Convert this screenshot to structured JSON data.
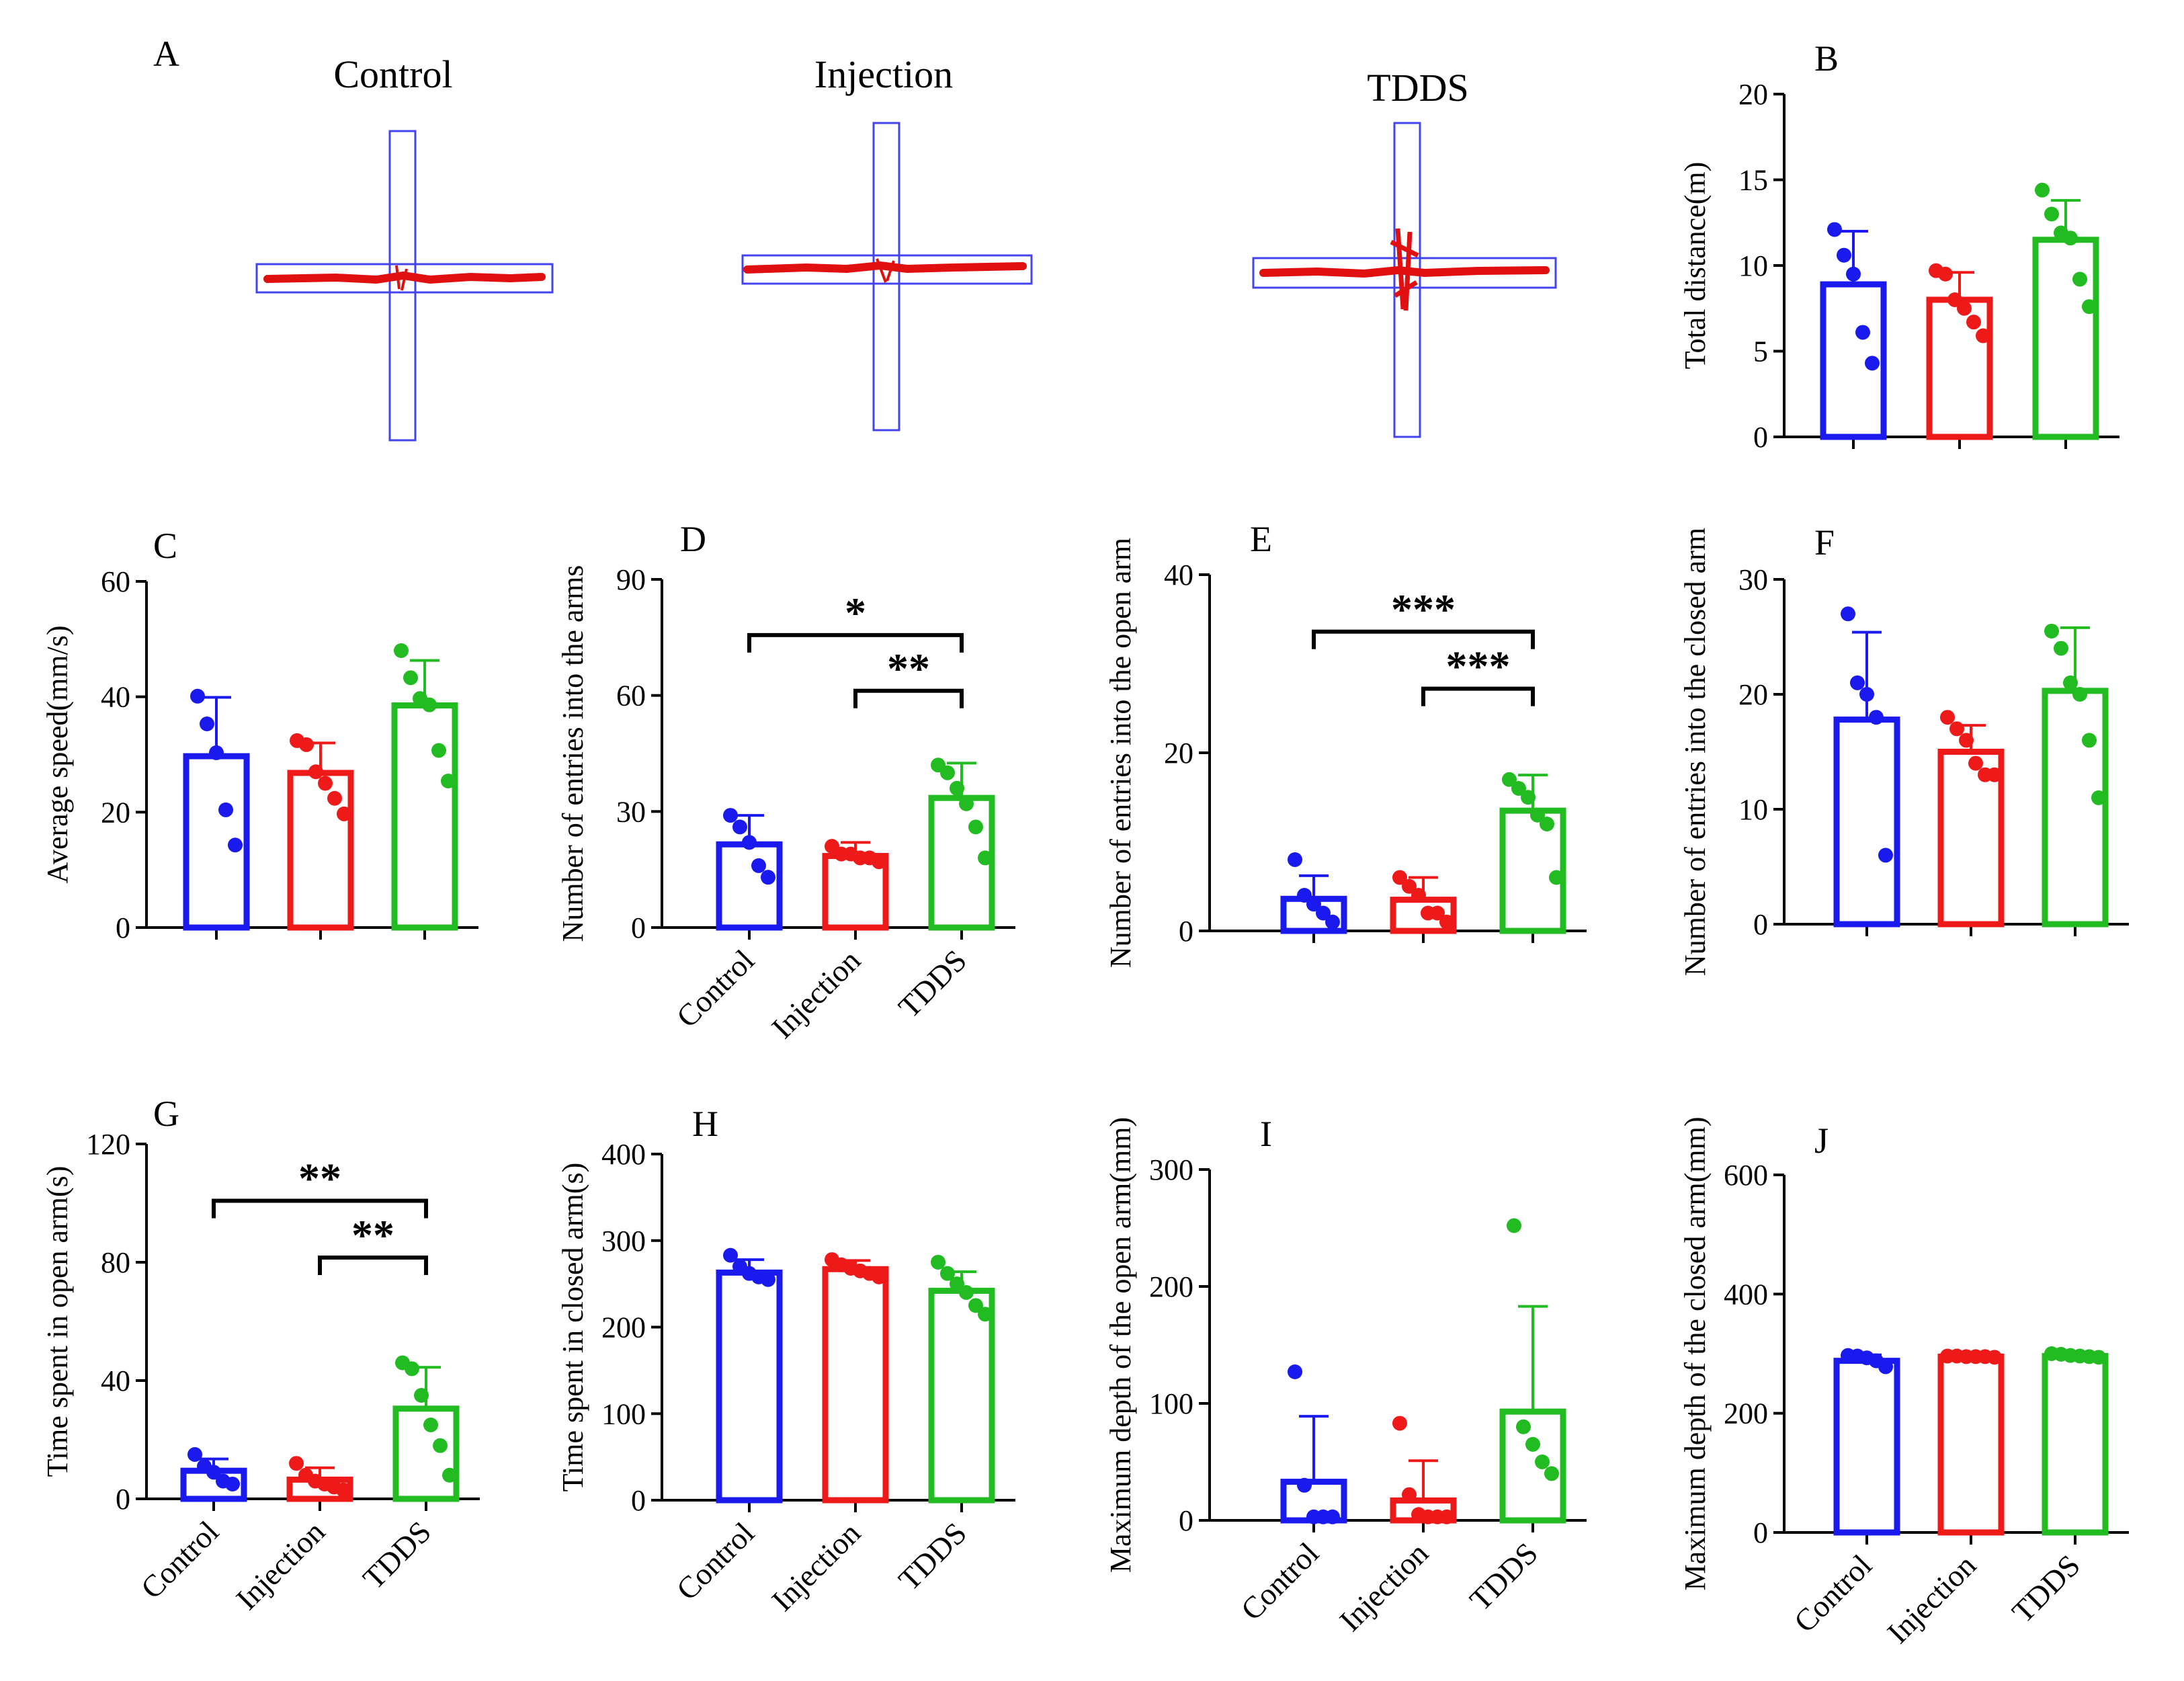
{
  "figure": {
    "panel_a": {
      "label": "A",
      "titles": [
        "Control",
        "Injection",
        "TDDS"
      ]
    },
    "categories": [
      "Control",
      "Injection",
      "TDDS"
    ],
    "colors": {
      "Control": "#1a1aee",
      "Injection": "#ee1a1a",
      "TDDS": "#22bb22"
    }
  },
  "chart_data": [
    {
      "label": "B",
      "type": "bar",
      "ylabel": "Total distance(m)",
      "ylim": [
        0,
        20
      ],
      "yticks": [
        0,
        5,
        10,
        15,
        20
      ],
      "categories": [
        "Control",
        "Injection",
        "TDDS"
      ],
      "means": [
        8.9,
        8.0,
        11.5
      ],
      "sd": [
        3.1,
        1.6,
        2.3
      ],
      "points": [
        [
          12.1,
          10.6,
          9.5,
          6.1,
          4.3
        ],
        [
          9.7,
          9.5,
          8.0,
          7.5,
          6.7,
          5.9
        ],
        [
          14.4,
          13.0,
          11.9,
          11.6,
          9.2,
          7.6
        ]
      ],
      "show_xlabels": false,
      "brackets": []
    },
    {
      "label": "C",
      "type": "bar",
      "ylabel": "Average speed(mm/s)",
      "ylim": [
        0,
        60
      ],
      "yticks": [
        0,
        20,
        40,
        60
      ],
      "categories": [
        "Control",
        "Injection",
        "TDDS"
      ],
      "means": [
        29.7,
        26.8,
        38.5
      ],
      "sd": [
        10.2,
        5.2,
        7.8
      ],
      "points": [
        [
          40.1,
          35.3,
          30.3,
          20.4,
          14.3
        ],
        [
          32.4,
          31.7,
          27.0,
          25.0,
          22.4,
          19.7
        ],
        [
          48.0,
          43.3,
          39.7,
          38.6,
          30.7,
          25.4
        ]
      ],
      "show_xlabels": false,
      "brackets": []
    },
    {
      "label": "D",
      "type": "bar",
      "ylabel": "Number of entries into the arms",
      "ylim": [
        0,
        90
      ],
      "yticks": [
        0,
        30,
        60,
        90
      ],
      "categories": [
        "Control",
        "Injection",
        "TDDS"
      ],
      "means": [
        21.5,
        18.5,
        33.5
      ],
      "sd": [
        7.5,
        3.5,
        9.0
      ],
      "points": [
        [
          29.0,
          26.0,
          22.0,
          16.0,
          13.0
        ],
        [
          21.0,
          19.0,
          19.0,
          18.0,
          18.0,
          17.0
        ],
        [
          42.0,
          40.0,
          36.0,
          32.0,
          26.0,
          18.0
        ]
      ],
      "show_xlabels": true,
      "brackets": [
        {
          "from": 0,
          "to": 2,
          "label": "*"
        },
        {
          "from": 1,
          "to": 2,
          "label": "**"
        }
      ]
    },
    {
      "label": "E",
      "type": "bar",
      "ylabel": "Number of entries into the open arm",
      "ylim": [
        0,
        40
      ],
      "yticks": [
        0,
        20,
        40
      ],
      "categories": [
        "Control",
        "Injection",
        "TDDS"
      ],
      "means": [
        3.6,
        3.5,
        13.5
      ],
      "sd": [
        2.6,
        2.5,
        4.0
      ],
      "points": [
        [
          8.0,
          4.0,
          3.0,
          2.0,
          1.0
        ],
        [
          6.0,
          5.0,
          4.0,
          2.0,
          2.0,
          1.0
        ],
        [
          17.0,
          16.0,
          15.0,
          13.0,
          12.0,
          6.0
        ]
      ],
      "show_xlabels": false,
      "brackets": [
        {
          "from": 0,
          "to": 2,
          "label": "***"
        },
        {
          "from": 1,
          "to": 2,
          "label": "***"
        }
      ]
    },
    {
      "label": "F",
      "type": "bar",
      "ylabel": "Number of entries into the closed arm",
      "ylim": [
        0,
        30
      ],
      "yticks": [
        0,
        10,
        20,
        30
      ],
      "categories": [
        "Control",
        "Injection",
        "TDDS"
      ],
      "means": [
        17.8,
        15.0,
        20.3
      ],
      "sd": [
        7.6,
        2.3,
        5.5
      ],
      "points": [
        [
          27.0,
          21.0,
          20.0,
          18.0,
          6.0
        ],
        [
          18.0,
          17.0,
          16.0,
          14.0,
          13.0,
          13.0
        ],
        [
          25.5,
          24.0,
          21.0,
          20.0,
          16.0,
          11.0
        ]
      ],
      "show_xlabels": false,
      "brackets": []
    },
    {
      "label": "G",
      "type": "bar",
      "ylabel": "Time spent in open arm(s)",
      "ylim": [
        0,
        120
      ],
      "yticks": [
        0,
        40,
        80,
        120
      ],
      "categories": [
        "Control",
        "Injection",
        "TDDS"
      ],
      "means": [
        9.5,
        6.5,
        30.5
      ],
      "sd": [
        4.0,
        4.0,
        14.0
      ],
      "points": [
        [
          15.0,
          11.0,
          9.0,
          6.0,
          5.0
        ],
        [
          12.0,
          8.0,
          6.0,
          5.0,
          4.0,
          3.0
        ],
        [
          46.0,
          44.0,
          35.0,
          25.0,
          18.0,
          8.0
        ]
      ],
      "show_xlabels": true,
      "brackets": [
        {
          "from": 0,
          "to": 2,
          "label": "**"
        },
        {
          "from": 1,
          "to": 2,
          "label": "**"
        }
      ]
    },
    {
      "label": "H",
      "type": "bar",
      "ylabel": "Time spent in closed arm(s)",
      "ylim": [
        0,
        400
      ],
      "yticks": [
        0,
        100,
        200,
        300,
        400
      ],
      "categories": [
        "Control",
        "Injection",
        "TDDS"
      ],
      "means": [
        263,
        267,
        242
      ],
      "sd": [
        15,
        10,
        22
      ],
      "points": [
        [
          283,
          270,
          262,
          258,
          255
        ],
        [
          278,
          272,
          268,
          265,
          262,
          258
        ],
        [
          275,
          262,
          250,
          240,
          225,
          215
        ]
      ],
      "show_xlabels": true,
      "brackets": []
    },
    {
      "label": "I",
      "type": "bar",
      "ylabel": "Maximum depth of the open arm(mm)",
      "ylim": [
        0,
        300
      ],
      "yticks": [
        0,
        100,
        200,
        300
      ],
      "categories": [
        "Control",
        "Injection",
        "TDDS"
      ],
      "means": [
        33,
        17,
        93
      ],
      "sd": [
        56,
        34,
        90
      ],
      "points": [
        [
          127,
          30,
          3,
          3,
          3
        ],
        [
          83,
          22,
          5,
          3,
          3,
          3
        ],
        [
          252,
          80,
          65,
          50,
          40
        ]
      ],
      "show_xlabels": true,
      "brackets": []
    },
    {
      "label": "J",
      "type": "bar",
      "ylabel": "Maximum depth of the closed arm(mm)",
      "ylim": [
        0,
        600
      ],
      "yticks": [
        0,
        200,
        400,
        600
      ],
      "categories": [
        "Control",
        "Injection",
        "TDDS"
      ],
      "means": [
        288,
        295,
        296
      ],
      "sd": [
        10,
        3,
        3
      ],
      "points": [
        [
          297,
          296,
          293,
          288,
          278
        ],
        [
          296,
          296,
          295,
          295,
          295,
          294
        ],
        [
          300,
          299,
          297,
          296,
          295,
          294
        ]
      ],
      "show_xlabels": true,
      "brackets": []
    }
  ]
}
